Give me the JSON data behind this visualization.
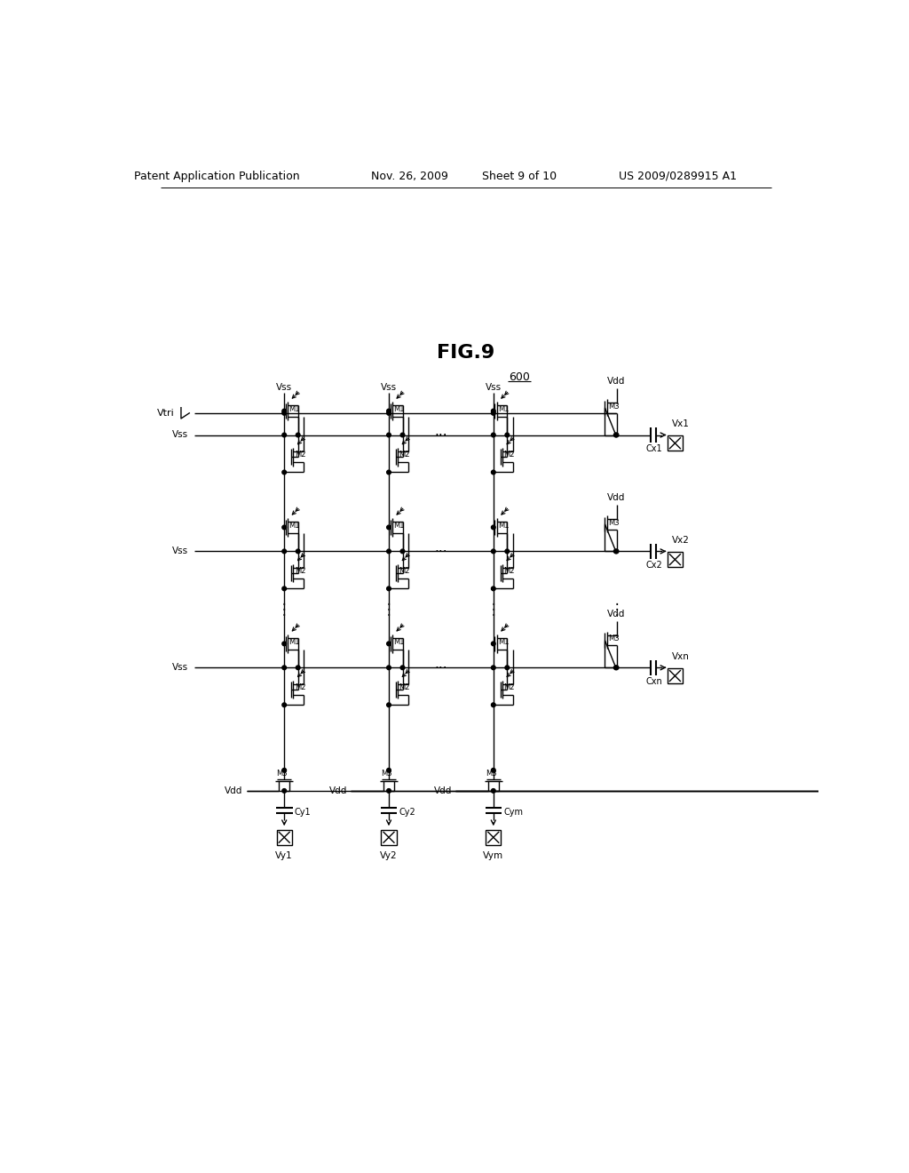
{
  "background": "#ffffff",
  "line_color": "#000000",
  "patent_line1": "Patent Application Publication",
  "patent_line2": "Nov. 26, 2009",
  "patent_line3": "Sheet 9 of 10",
  "patent_line4": "US 2009/0289915 A1",
  "fig_title": "FIG.9",
  "fig_label": "600",
  "vtri_label": "Vtri",
  "vss_col_labels": [
    "Vss",
    "Vss",
    "Vss"
  ],
  "vdd_right_labels": [
    "Vdd",
    "Vdd",
    "Vdd"
  ],
  "vdd_bot_labels": [
    "Vdd",
    "Vdd",
    "Vdd"
  ],
  "vss_row_labels": [
    "Vss",
    "Vss",
    "Vss"
  ],
  "vx_labels": [
    "Vx1",
    "Vx2",
    "Vxn"
  ],
  "vy_labels": [
    "Vy1",
    "Vy2",
    "Vym"
  ],
  "cx_labels": [
    "Cx1",
    "Cx2",
    "Cxn"
  ],
  "cy_labels": [
    "Cy1",
    "Cy2",
    "Cym"
  ],
  "m1_label": "M1",
  "m2_label": "M2",
  "m3_label": "M3",
  "lw": 1.0,
  "lw_thick": 1.5
}
